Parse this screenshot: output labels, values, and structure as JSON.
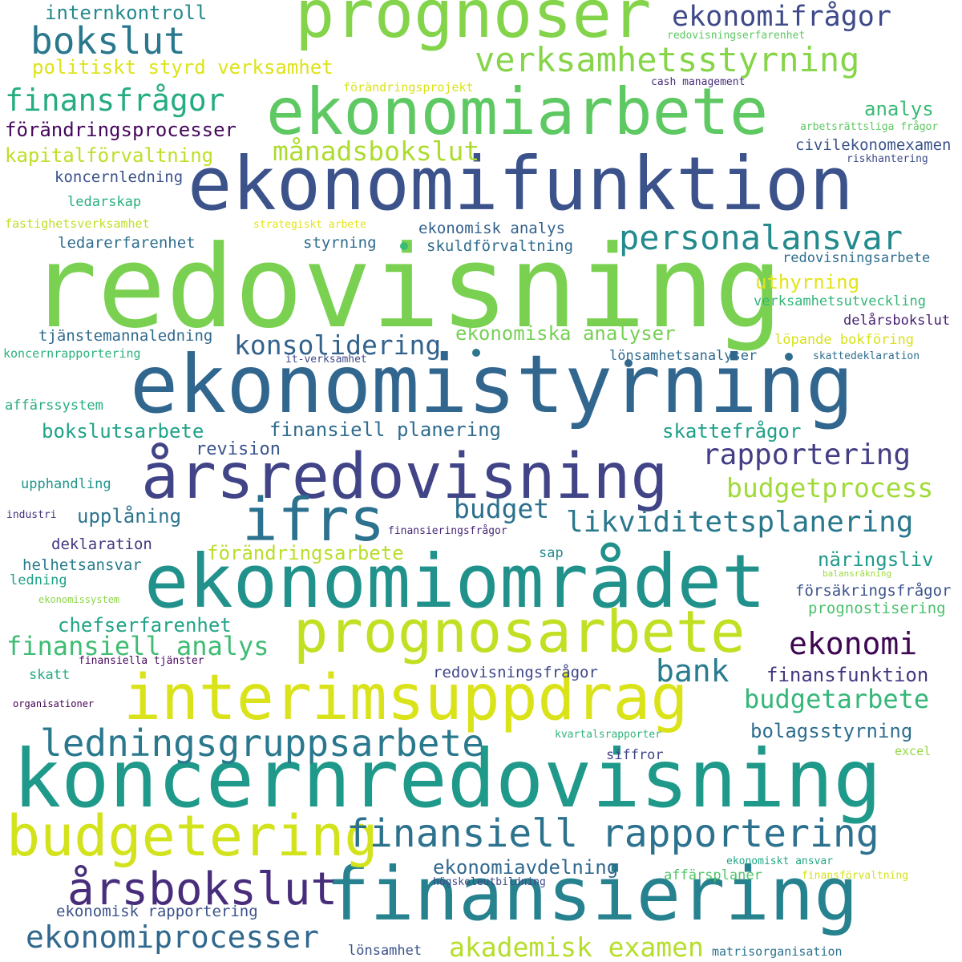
{
  "words": [
    {
      "text": "redovisning",
      "color": "#7ad151"
    },
    {
      "text": "ekonomistyrning",
      "color": "#31668e"
    },
    {
      "text": "koncernredovisning",
      "color": "#1f998a"
    },
    {
      "text": "ekonomifunktion",
      "color": "#3b528b"
    },
    {
      "text": "ekonomiområdet",
      "color": "#21918c"
    },
    {
      "text": "finansiering",
      "color": "#26828e"
    },
    {
      "text": "ekonomiarbete",
      "color": "#5ec962"
    },
    {
      "text": "prognoser",
      "color": "#84d44b"
    },
    {
      "text": "årsredovisning",
      "color": "#414487"
    },
    {
      "text": "interimsuppdrag",
      "color": "#dae319"
    },
    {
      "text": "budgetering",
      "color": "#d2e21b"
    },
    {
      "text": "prognosarbete",
      "color": "#c2df23"
    },
    {
      "text": "ifrs",
      "color": "#2c718e"
    },
    {
      "text": "verksamhetsstyrning",
      "color": "#86d549"
    },
    {
      "text": "finansiell rapportering",
      "color": "#2c728e"
    },
    {
      "text": "ledningsgruppsarbete",
      "color": "#2a788e"
    },
    {
      "text": "årsbokslut",
      "color": "#472d7b"
    },
    {
      "text": "personalansvar",
      "color": "#238a8d"
    },
    {
      "text": "bokslut",
      "color": "#2a788e"
    },
    {
      "text": "ekonomifrågor",
      "color": "#3e4a89"
    },
    {
      "text": "finansfrågor",
      "color": "#25ac82"
    },
    {
      "text": "likviditetsplanering",
      "color": "#2a788e"
    },
    {
      "text": "ekonomiprocesser",
      "color": "#31688e"
    },
    {
      "text": "akademisk examen",
      "color": "#b5de2b"
    },
    {
      "text": "rapportering",
      "color": "#433e85"
    },
    {
      "text": "budgetprocess",
      "color": "#a0da39"
    },
    {
      "text": "konsolidering",
      "color": "#33638d"
    },
    {
      "text": "månadsbokslut",
      "color": "#addc30"
    },
    {
      "text": "budget",
      "color": "#2d708e"
    },
    {
      "text": "ekonomi",
      "color": "#3e0751"
    },
    {
      "text": "bank",
      "color": "#287c8e"
    },
    {
      "text": "finansiell analys",
      "color": "#3fbc73"
    },
    {
      "text": "budgetarbete",
      "color": "#35b779"
    },
    {
      "text": "ekonomiska analyser",
      "color": "#75d054"
    },
    {
      "text": "politiskt styrd verksamhet",
      "color": "#dde318"
    },
    {
      "text": "förändringsprocesser",
      "color": "#46085c"
    },
    {
      "text": "kapitalförvaltning",
      "color": "#bddf26"
    },
    {
      "text": "uthyrning",
      "color": "#e2e418"
    },
    {
      "text": "upplåning",
      "color": "#2b758e"
    },
    {
      "text": "finansiell planering",
      "color": "#2f6c8e"
    },
    {
      "text": "bokslutsarbete",
      "color": "#20a386"
    },
    {
      "text": "skattefrågor",
      "color": "#1fa088"
    },
    {
      "text": "finansfunktion",
      "color": "#453781"
    },
    {
      "text": "förändringsarbete",
      "color": "#b8de29"
    },
    {
      "text": "chefserfarenhet",
      "color": "#20a486"
    },
    {
      "text": "bolagsstyrning",
      "color": "#2e6e8e"
    },
    {
      "text": "ekonomiavdelning",
      "color": "#31688e"
    },
    {
      "text": "internkontroll",
      "color": "#238a8d"
    },
    {
      "text": "analys",
      "color": "#3aba76"
    },
    {
      "text": "näringsliv",
      "color": "#1f9a8a"
    },
    {
      "text": "revision",
      "color": "#3a548c"
    },
    {
      "text": "ekonomisk rapportering",
      "color": "#3b528b"
    },
    {
      "text": "ekonomisk analys",
      "color": "#34618d"
    },
    {
      "text": "tjänstemannaledning",
      "color": "#306a8e"
    },
    {
      "text": "ledarerfarenhet",
      "color": "#2e6f8e"
    },
    {
      "text": "koncernledning",
      "color": "#3b528b"
    },
    {
      "text": "deklaration",
      "color": "#443983"
    },
    {
      "text": "styrning",
      "color": "#2f6c8e"
    },
    {
      "text": "helhetsansvar",
      "color": "#287d8e"
    },
    {
      "text": "skuldförvaltning",
      "color": "#2f6c8e"
    },
    {
      "text": "civilekonomexamen",
      "color": "#3b528b"
    },
    {
      "text": "redovisningsfrågor",
      "color": "#3f4788"
    },
    {
      "text": "prognostisering",
      "color": "#4ac16d"
    },
    {
      "text": "försäkringsfrågor",
      "color": "#3b528b"
    },
    {
      "text": "verksamhetsutveckling",
      "color": "#34b679"
    },
    {
      "text": "lönsamhetsanalyser",
      "color": "#2f6c8e"
    },
    {
      "text": "upphandling",
      "color": "#1f968b"
    },
    {
      "text": "affärssystem",
      "color": "#29af7f"
    },
    {
      "text": "delårsbokslut",
      "color": "#482173"
    },
    {
      "text": "löpande bokföring",
      "color": "#d8e219"
    },
    {
      "text": "redovisningsarbete",
      "color": "#2e6e8e"
    },
    {
      "text": "lönsamhet",
      "color": "#3b528b"
    },
    {
      "text": "matrisorganisation",
      "color": "#2c738e"
    },
    {
      "text": "förändringsprojekt",
      "color": "#dae319"
    },
    {
      "text": "fastighetsverksamhet",
      "color": "#c0df25"
    },
    {
      "text": "ledarskap",
      "color": "#2ab07f"
    },
    {
      "text": "koncernrapportering",
      "color": "#2db27d"
    },
    {
      "text": "siffror",
      "color": "#414487"
    },
    {
      "text": "excel",
      "color": "#95d840"
    },
    {
      "text": "skatt",
      "color": "#25ab82"
    },
    {
      "text": "sap",
      "color": "#238a8d"
    },
    {
      "text": "ledning",
      "color": "#1fa188"
    },
    {
      "text": "affärsplaner",
      "color": "#52c569"
    },
    {
      "text": "redovisningserfarenhet",
      "color": "#5cc863"
    },
    {
      "text": "cash management",
      "color": "#472c7a"
    },
    {
      "text": "arbetsrättsliga frågor",
      "color": "#5ec962"
    },
    {
      "text": "riskhantering",
      "color": "#3e4c8a"
    },
    {
      "text": "strategiskt arbete",
      "color": "#e5e419"
    },
    {
      "text": "it-verksamhet",
      "color": "#3e4989"
    },
    {
      "text": "skattedeklaration",
      "color": "#2e6e8e"
    },
    {
      "text": "industri",
      "color": "#46327e"
    },
    {
      "text": "finansieringsfrågor",
      "color": "#482677"
    },
    {
      "text": "balansräkning",
      "color": "#9bd93c"
    },
    {
      "text": "ekonomissystem",
      "color": "#8bd646"
    },
    {
      "text": "finansiella tjänster",
      "color": "#46085c"
    },
    {
      "text": "organisationer",
      "color": "#440154"
    },
    {
      "text": "kvartalsrapporter",
      "color": "#2fb47c"
    },
    {
      "text": "ekonomiskt ansvar",
      "color": "#22a884"
    },
    {
      "text": "finansförvaltning",
      "color": "#d5e21a"
    },
    {
      "text": "högskoleutbildning",
      "color": "#3e4989"
    }
  ],
  "dots": [
    {
      "color": "#3aba76"
    },
    {
      "color": "#31688e"
    },
    {
      "color": "#2f6c8e"
    },
    {
      "color": "#2a788e"
    }
  ]
}
